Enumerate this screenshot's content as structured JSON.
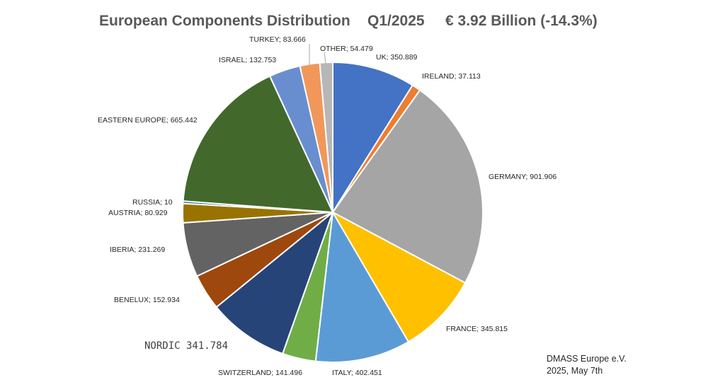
{
  "header": {
    "title": "European Components Distribution",
    "period": "Q1/2025",
    "total": "€ 3.92 Billion (-14.3%)"
  },
  "source": {
    "line1": "DMASS Europe e.V.",
    "line2": "2025, May 7th"
  },
  "chart_data": {
    "type": "pie",
    "title": "European Components Distribution Q1/2025 € 3.92 Billion (-14.3%)",
    "slices": [
      {
        "label": "UK",
        "value": 350.889,
        "color": "#4472C4",
        "label_text": "UK; 350.889"
      },
      {
        "label": "IRELAND",
        "value": 37.113,
        "color": "#ED7D31",
        "label_text": "IRELAND; 37.113"
      },
      {
        "label": "GERMANY",
        "value": 901.906,
        "color": "#A5A5A5",
        "label_text": "GERMANY; 901.906"
      },
      {
        "label": "FRANCE",
        "value": 345.815,
        "color": "#FFC000",
        "label_text": "FRANCE; 345.815"
      },
      {
        "label": "ITALY",
        "value": 402.451,
        "color": "#5B9BD5",
        "label_text": "ITALY; 402.451"
      },
      {
        "label": "SWITZERLAND",
        "value": 141.496,
        "color": "#70AD47",
        "label_text": "SWITZERLAND; 141.496"
      },
      {
        "label": "NORDIC",
        "value": 341.784,
        "color": "#264478",
        "label_text": "NORDIC 341.784"
      },
      {
        "label": "BENELUX",
        "value": 152.934,
        "color": "#9E480E",
        "label_text": "BENELUX; 152.934"
      },
      {
        "label": "IBERIA",
        "value": 231.269,
        "color": "#636363",
        "label_text": "IBERIA; 231.269"
      },
      {
        "label": "AUSTRIA",
        "value": 80.929,
        "color": "#997300",
        "label_text": "AUSTRIA; 80.929"
      },
      {
        "label": "RUSSIA",
        "value": 10,
        "color": "#255E91",
        "label_text": "RUSSIA; 10"
      },
      {
        "label": "EASTERN EUROPE",
        "value": 665.442,
        "color": "#43682B",
        "label_text": "EASTERN EUROPE; 665.442"
      },
      {
        "label": "ISRAEL",
        "value": 132.753,
        "color": "#698ED0",
        "label_text": "ISRAEL; 132.753"
      },
      {
        "label": "TURKEY",
        "value": 83.666,
        "color": "#F1975A",
        "label_text": "TURKEY; 83.666"
      },
      {
        "label": "OTHER",
        "value": 54.479,
        "color": "#B7B7B7",
        "label_text": "OTHER; 54.479"
      }
    ],
    "legend": "none"
  }
}
